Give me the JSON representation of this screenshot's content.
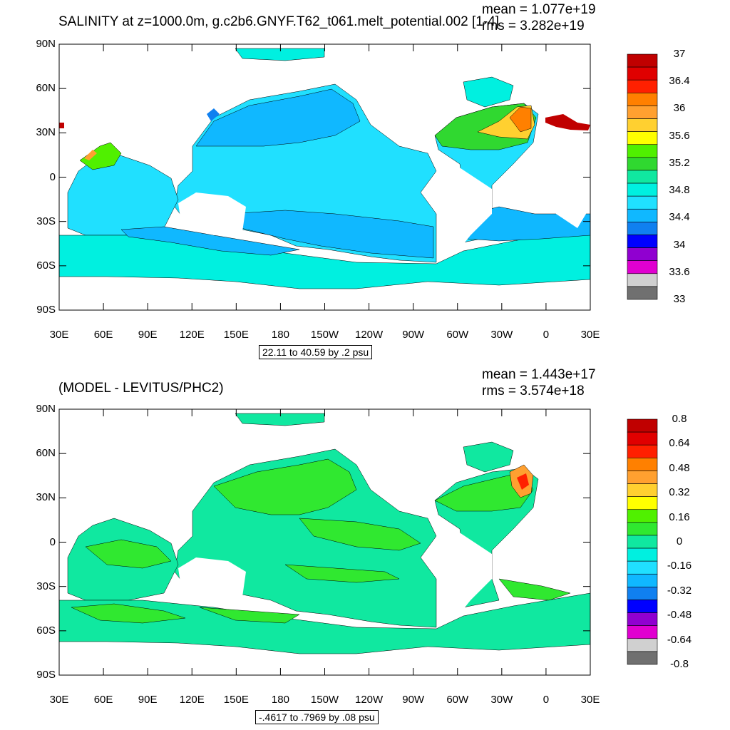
{
  "panels": [
    {
      "title": "SALINITY at z=1000.0m, g.c2b6.GNYF.T62_t061.melt_potential.002 [1-4]",
      "stats": {
        "mean": "mean = 1.077e+19",
        "rms": "rms = 3.282e+19"
      },
      "range_label": "22.11 to 40.59 by .2 psu",
      "lat_ticks": [
        "90N",
        "60N",
        "30N",
        "0",
        "30S",
        "60S",
        "90S"
      ],
      "lon_ticks": [
        "30E",
        "60E",
        "90E",
        "120E",
        "150E",
        "180",
        "150W",
        "120W",
        "90W",
        "60W",
        "30W",
        "0",
        "30E"
      ],
      "colorbar": {
        "labels": [
          "37",
          "36.4",
          "36",
          "35.6",
          "35.2",
          "34.8",
          "34.4",
          "34",
          "33.6",
          "33"
        ],
        "colors": [
          "#c00000",
          "#e00000",
          "#ff2000",
          "#ff8000",
          "#ffa030",
          "#ffd030",
          "#ffff00",
          "#50f000",
          "#30d830",
          "#10e8a0",
          "#00f0e0",
          "#20e0ff",
          "#10b8ff",
          "#1080f0",
          "#0000ff",
          "#9000d0",
          "#e000d0",
          "#d0d0d0",
          "#707070"
        ]
      },
      "fields": {
        "pacific_main": "#20e0ff",
        "pacific_deep": "#10b8ff",
        "southern": "#00f0e0",
        "atlantic_north": "#30d830",
        "atlantic_core": "#ffd030",
        "mediterranean": "#c00000",
        "arctic": "#00f0e0",
        "land": "#ffffff"
      }
    },
    {
      "title": "(MODEL - LEVITUS/PHC2)",
      "stats": {
        "mean": "mean = 1.443e+17",
        "rms": "rms = 3.574e+18"
      },
      "range_label": "-.4617 to .7969 by .08 psu",
      "lat_ticks": [
        "90N",
        "60N",
        "30N",
        "0",
        "30S",
        "60S",
        "90S"
      ],
      "lon_ticks": [
        "30E",
        "60E",
        "90E",
        "120E",
        "150E",
        "180",
        "150W",
        "120W",
        "90W",
        "60W",
        "30W",
        "0",
        "30E"
      ],
      "colorbar": {
        "labels": [
          "0.8",
          "0.64",
          "0.48",
          "0.32",
          "0.16",
          "0",
          "-0.16",
          "-0.32",
          "-0.48",
          "-0.64",
          "-0.8"
        ],
        "colors": [
          "#c00000",
          "#e00000",
          "#ff2000",
          "#ff8000",
          "#ffa030",
          "#ffd030",
          "#ffff00",
          "#50f000",
          "#30e830",
          "#10e8a0",
          "#00f0e0",
          "#20e0ff",
          "#10b8ff",
          "#1080f0",
          "#0000ff",
          "#9000d0",
          "#e000d0",
          "#d0d0d0",
          "#707070"
        ]
      },
      "fields": {
        "ocean_base": "#10e8a0",
        "positive_patches": "#30e830",
        "strong_positive": "#ffa030",
        "land": "#ffffff"
      }
    }
  ]
}
